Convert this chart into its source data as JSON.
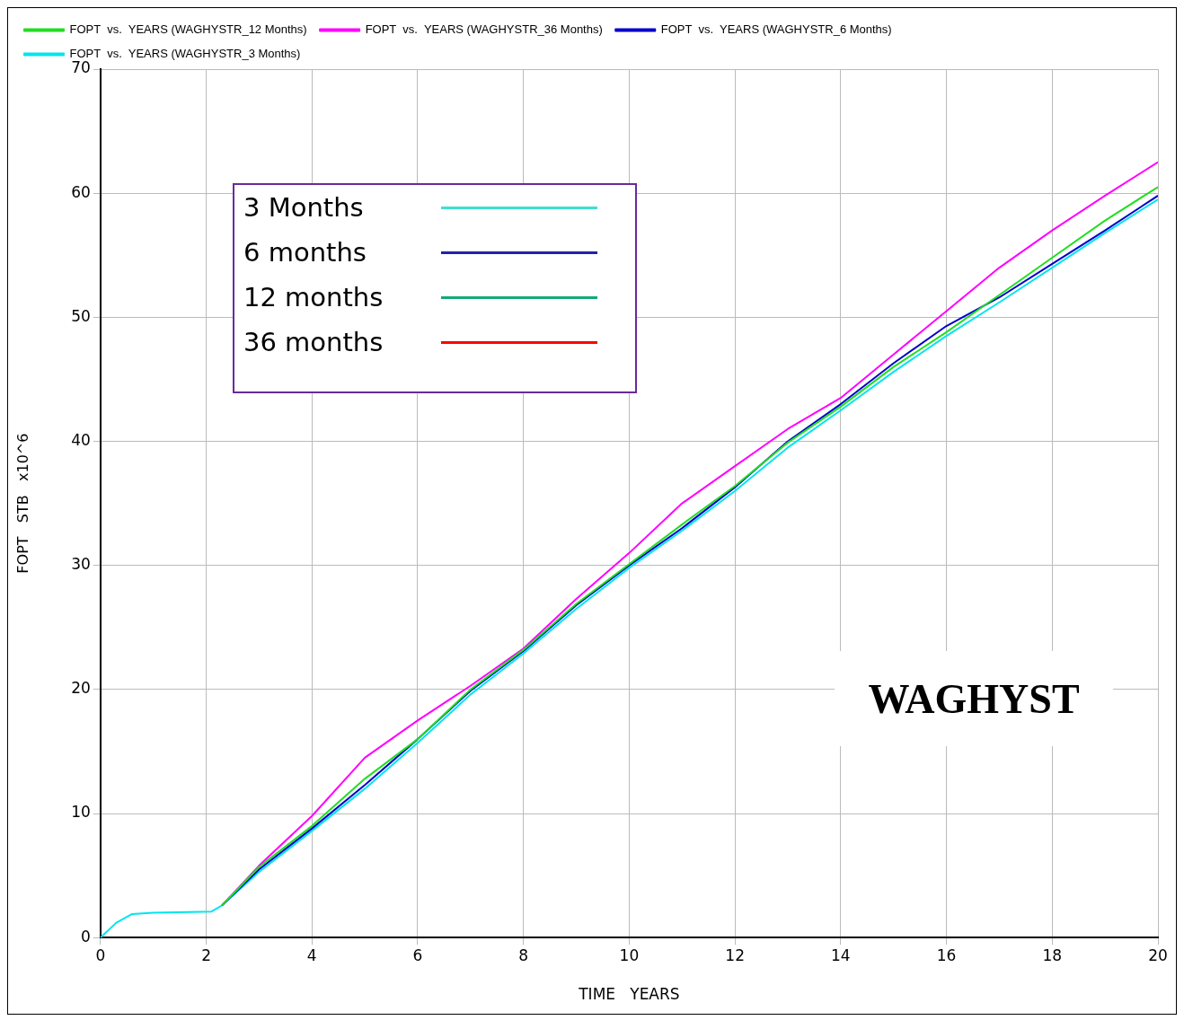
{
  "chart_data": {
    "type": "line",
    "xlabel": "TIME   YEARS",
    "ylabel": "FOPT   STB   x10^6",
    "xlim": [
      0,
      20
    ],
    "xticks": [
      0,
      2,
      4,
      6,
      8,
      10,
      12,
      14,
      16,
      18,
      20
    ],
    "ylim": [
      0,
      70
    ],
    "yticks": [
      0,
      10,
      20,
      30,
      40,
      50,
      60,
      70
    ],
    "grid": true,
    "legend": "top left",
    "marker": "none",
    "line_style": "solid",
    "annotations": [
      "3 Months",
      "6 months",
      "12 months",
      "36 months",
      "WAGHYST"
    ],
    "x": [
      0,
      0.3,
      0.6,
      1,
      2.1,
      2.3,
      3,
      4,
      5,
      6,
      7,
      8,
      9,
      10,
      11,
      12,
      13,
      14,
      15,
      16,
      17,
      18,
      19,
      20
    ],
    "series": [
      {
        "name": "FOPT  vs.  YEARS (WAGHYSTR_12 Months)",
        "color": "#22dd22",
        "values": [
          null,
          null,
          null,
          null,
          null,
          2.6,
          5.7,
          9,
          12.8,
          16,
          20,
          23.2,
          26.9,
          30.1,
          33.3,
          36.4,
          39.9,
          42.8,
          46,
          48.8,
          51.8,
          54.8,
          57.8,
          60.5
        ]
      },
      {
        "name": "FOPT  vs.  YEARS (WAGHYSTR_36 Months)",
        "color": "#ff00ff",
        "values": [
          null,
          null,
          null,
          null,
          null,
          2.6,
          5.8,
          9.8,
          14.5,
          17.5,
          20.3,
          23.3,
          27.3,
          31,
          35,
          38,
          41,
          43.5,
          47,
          50.5,
          54,
          57,
          59.8,
          62.5
        ]
      },
      {
        "name": "FOPT  vs.  YEARS (WAGHYSTR_6 Months)",
        "color": "#0000cc",
        "values": [
          null,
          null,
          null,
          null,
          null,
          2.6,
          5.5,
          8.8,
          12.3,
          16,
          19.9,
          23.1,
          26.8,
          30,
          33,
          36.3,
          40,
          43,
          46.3,
          49.3,
          51.6,
          54.3,
          57,
          59.8
        ]
      },
      {
        "name": "FOPT  vs.  YEARS (WAGHYSTR_3 Months)",
        "color": "#00e5ee",
        "values": [
          0,
          1.2,
          1.9,
          2,
          2.1,
          2.6,
          5.3,
          8.6,
          12,
          15.7,
          19.6,
          22.9,
          26.5,
          29.8,
          32.8,
          36,
          39.5,
          42.5,
          45.6,
          48.5,
          51.2,
          54,
          56.8,
          59.5
        ]
      }
    ]
  }
}
